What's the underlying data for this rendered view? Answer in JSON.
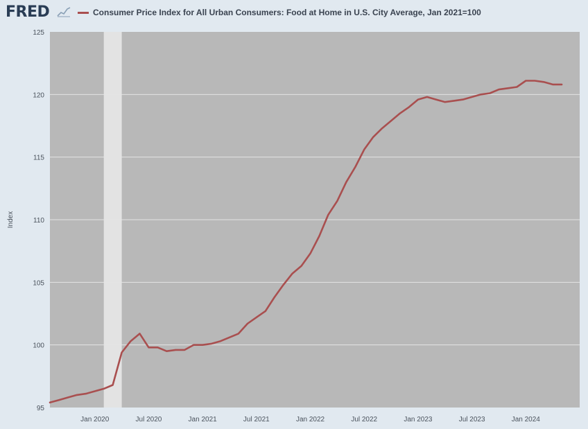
{
  "header": {
    "logo": "FRED",
    "logo_mark_icon": "chart-line-icon",
    "legend_label": "Consumer Price Index for All Urban Consumers: Food at Home in U.S. City Average, Jan 2021=100"
  },
  "colors": {
    "series": "#a94f4f",
    "plot_bg": "#b8b8b8",
    "recession": "#e3e3e3",
    "gridline": "#e4e4e4",
    "page_bg": "#e1e9f0"
  },
  "chart_data": {
    "type": "line",
    "title": "",
    "xlabel": "",
    "ylabel": "Index",
    "x_range": [
      "2019-08",
      "2024-07"
    ],
    "ylim": [
      95,
      125
    ],
    "yticks": [
      95,
      100,
      105,
      110,
      115,
      120,
      125
    ],
    "xticks": [
      {
        "date": "2020-01",
        "label": "Jan 2020"
      },
      {
        "date": "2020-07",
        "label": "Jul 2020"
      },
      {
        "date": "2021-01",
        "label": "Jan 2021"
      },
      {
        "date": "2021-07",
        "label": "Jul 2021"
      },
      {
        "date": "2022-01",
        "label": "Jan 2022"
      },
      {
        "date": "2022-07",
        "label": "Jul 2022"
      },
      {
        "date": "2023-01",
        "label": "Jan 2023"
      },
      {
        "date": "2023-07",
        "label": "Jul 2023"
      },
      {
        "date": "2024-01",
        "label": "Jan 2024"
      }
    ],
    "recession": [
      "2020-02",
      "2020-04"
    ],
    "grid": true,
    "legend": "top",
    "series": [
      {
        "name": "Consumer Price Index for All Urban Consumers: Food at Home in U.S. City Average, Jan 2021=100",
        "points": [
          [
            "2019-08",
            95.4
          ],
          [
            "2019-09",
            95.6
          ],
          [
            "2019-10",
            95.8
          ],
          [
            "2019-11",
            96.0
          ],
          [
            "2019-12",
            96.1
          ],
          [
            "2020-01",
            96.3
          ],
          [
            "2020-02",
            96.5
          ],
          [
            "2020-03",
            96.8
          ],
          [
            "2020-04",
            99.4
          ],
          [
            "2020-05",
            100.3
          ],
          [
            "2020-06",
            100.9
          ],
          [
            "2020-07",
            99.8
          ],
          [
            "2020-08",
            99.8
          ],
          [
            "2020-09",
            99.5
          ],
          [
            "2020-10",
            99.6
          ],
          [
            "2020-11",
            99.6
          ],
          [
            "2020-12",
            100.0
          ],
          [
            "2021-01",
            100.0
          ],
          [
            "2021-02",
            100.1
          ],
          [
            "2021-03",
            100.3
          ],
          [
            "2021-04",
            100.6
          ],
          [
            "2021-05",
            100.9
          ],
          [
            "2021-06",
            101.7
          ],
          [
            "2021-07",
            102.2
          ],
          [
            "2021-08",
            102.7
          ],
          [
            "2021-09",
            103.8
          ],
          [
            "2021-10",
            104.8
          ],
          [
            "2021-11",
            105.7
          ],
          [
            "2021-12",
            106.3
          ],
          [
            "2022-01",
            107.3
          ],
          [
            "2022-02",
            108.7
          ],
          [
            "2022-03",
            110.4
          ],
          [
            "2022-04",
            111.5
          ],
          [
            "2022-05",
            113.0
          ],
          [
            "2022-06",
            114.2
          ],
          [
            "2022-07",
            115.6
          ],
          [
            "2022-08",
            116.6
          ],
          [
            "2022-09",
            117.3
          ],
          [
            "2022-10",
            117.9
          ],
          [
            "2022-11",
            118.5
          ],
          [
            "2022-12",
            119.0
          ],
          [
            "2023-01",
            119.6
          ],
          [
            "2023-02",
            119.8
          ],
          [
            "2023-03",
            119.6
          ],
          [
            "2023-04",
            119.4
          ],
          [
            "2023-05",
            119.5
          ],
          [
            "2023-06",
            119.6
          ],
          [
            "2023-07",
            119.8
          ],
          [
            "2023-08",
            120.0
          ],
          [
            "2023-09",
            120.1
          ],
          [
            "2023-10",
            120.4
          ],
          [
            "2023-11",
            120.5
          ],
          [
            "2023-12",
            120.6
          ],
          [
            "2024-01",
            121.1
          ],
          [
            "2024-02",
            121.1
          ],
          [
            "2024-03",
            121.0
          ],
          [
            "2024-04",
            120.8
          ],
          [
            "2024-05",
            120.8
          ]
        ]
      }
    ]
  }
}
